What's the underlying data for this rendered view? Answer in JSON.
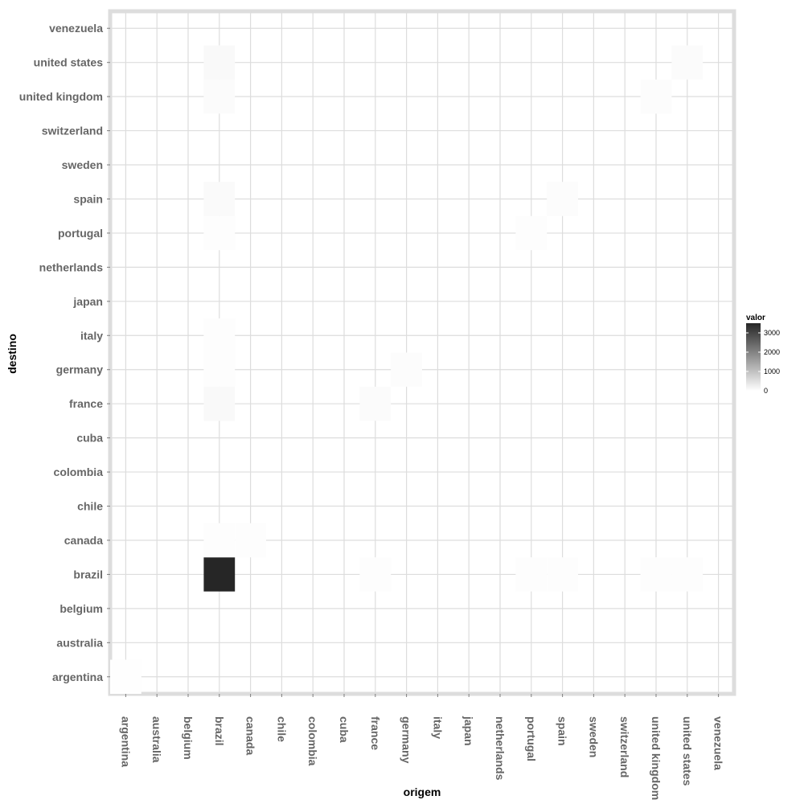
{
  "chart_data": {
    "type": "heatmap",
    "title": "",
    "xlabel": "origem",
    "ylabel": "destino",
    "x_categories": [
      "argentina",
      "australia",
      "belgium",
      "brazil",
      "canada",
      "chile",
      "colombia",
      "cuba",
      "france",
      "germany",
      "italy",
      "japan",
      "netherlands",
      "portugal",
      "spain",
      "sweden",
      "switzerland",
      "united kingdom",
      "united states",
      "venezuela"
    ],
    "y_categories": [
      "argentina",
      "australia",
      "belgium",
      "brazil",
      "canada",
      "chile",
      "colombia",
      "cuba",
      "france",
      "germany",
      "italy",
      "japan",
      "netherlands",
      "portugal",
      "spain",
      "sweden",
      "switzerland",
      "united kingdom",
      "united states",
      "venezuela"
    ],
    "cells": [
      {
        "x": "argentina",
        "y": "argentina",
        "value": 20
      },
      {
        "x": "brazil",
        "y": "brazil",
        "value": 3500
      },
      {
        "x": "brazil",
        "y": "united states",
        "value": 90
      },
      {
        "x": "brazil",
        "y": "united kingdom",
        "value": 70
      },
      {
        "x": "brazil",
        "y": "spain",
        "value": 80
      },
      {
        "x": "brazil",
        "y": "portugal",
        "value": 40
      },
      {
        "x": "brazil",
        "y": "italy",
        "value": 30
      },
      {
        "x": "brazil",
        "y": "germany",
        "value": 40
      },
      {
        "x": "brazil",
        "y": "france",
        "value": 90
      },
      {
        "x": "brazil",
        "y": "canada",
        "value": 30
      },
      {
        "x": "canada",
        "y": "canada",
        "value": 30
      },
      {
        "x": "france",
        "y": "france",
        "value": 70
      },
      {
        "x": "france",
        "y": "brazil",
        "value": 40
      },
      {
        "x": "germany",
        "y": "germany",
        "value": 50
      },
      {
        "x": "portugal",
        "y": "portugal",
        "value": 40
      },
      {
        "x": "portugal",
        "y": "brazil",
        "value": 30
      },
      {
        "x": "spain",
        "y": "spain",
        "value": 50
      },
      {
        "x": "spain",
        "y": "brazil",
        "value": 40
      },
      {
        "x": "united kingdom",
        "y": "united kingdom",
        "value": 50
      },
      {
        "x": "united kingdom",
        "y": "brazil",
        "value": 30
      },
      {
        "x": "united states",
        "y": "united states",
        "value": 70
      },
      {
        "x": "united states",
        "y": "brazil",
        "value": 40
      }
    ],
    "default_value": 0,
    "color_scale": {
      "low": "#ffffff",
      "high": "#262626",
      "min": 0,
      "max": 3500
    },
    "legend": {
      "title": "valor",
      "ticks": [
        0,
        1000,
        2000,
        3000
      ],
      "placement": "right"
    },
    "grid": true,
    "panel_border_color": "#dddddd",
    "grid_color": "#dddddd"
  }
}
